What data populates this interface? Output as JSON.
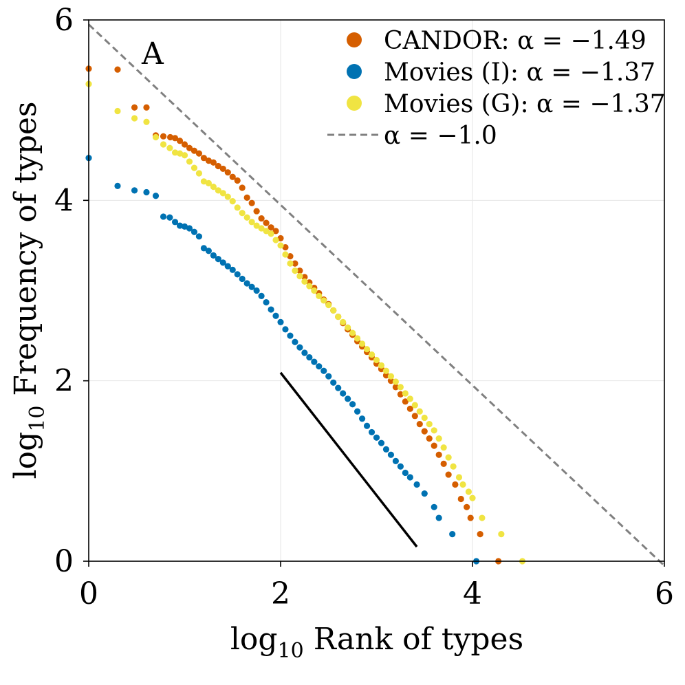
{
  "chart_data": {
    "type": "scatter",
    "panel_label": "A",
    "xlabel_prefix": "log",
    "xlabel_sub": "10",
    "xlabel_rest": " Rank of types",
    "ylabel_prefix": "log",
    "ylabel_sub": "10",
    "ylabel_rest": " Frequency of types",
    "xlim": [
      0,
      6
    ],
    "ylim": [
      0,
      6
    ],
    "xticks": [
      0,
      2,
      4,
      6
    ],
    "yticks": [
      0,
      2,
      4,
      6
    ],
    "grid": true,
    "legend_position": "top-right",
    "series": [
      {
        "name": "CANDOR",
        "label": "CANDOR: α = −1.49",
        "alpha": -1.49,
        "color": "#d55e00",
        "points": [
          [
            0,
            5.46
          ],
          [
            0.301,
            5.45
          ],
          [
            0.477,
            5.03
          ],
          [
            0.602,
            5.03
          ],
          [
            0.699,
            4.72
          ],
          [
            0.778,
            4.71
          ],
          [
            0.85,
            4.7
          ],
          [
            0.9,
            4.69
          ],
          [
            0.95,
            4.66
          ],
          [
            1.0,
            4.62
          ],
          [
            1.05,
            4.58
          ],
          [
            1.1,
            4.55
          ],
          [
            1.15,
            4.52
          ],
          [
            1.2,
            4.47
          ],
          [
            1.25,
            4.44
          ],
          [
            1.3,
            4.42
          ],
          [
            1.35,
            4.38
          ],
          [
            1.4,
            4.35
          ],
          [
            1.45,
            4.31
          ],
          [
            1.5,
            4.26
          ],
          [
            1.55,
            4.22
          ],
          [
            1.6,
            4.14
          ],
          [
            1.65,
            4.03
          ],
          [
            1.7,
            3.97
          ],
          [
            1.75,
            3.88
          ],
          [
            1.8,
            3.8
          ],
          [
            1.85,
            3.75
          ],
          [
            1.9,
            3.7
          ],
          [
            1.95,
            3.66
          ],
          [
            2.0,
            3.58
          ],
          [
            2.05,
            3.48
          ],
          [
            2.1,
            3.38
          ],
          [
            2.15,
            3.3
          ],
          [
            2.2,
            3.22
          ],
          [
            2.25,
            3.15
          ],
          [
            2.3,
            3.09
          ],
          [
            2.35,
            3.03
          ],
          [
            2.4,
            2.97
          ],
          [
            2.45,
            2.9
          ],
          [
            2.5,
            2.85
          ],
          [
            2.55,
            2.78
          ],
          [
            2.6,
            2.71
          ],
          [
            2.65,
            2.64
          ],
          [
            2.7,
            2.57
          ],
          [
            2.75,
            2.51
          ],
          [
            2.8,
            2.44
          ],
          [
            2.85,
            2.38
          ],
          [
            2.9,
            2.32
          ],
          [
            2.95,
            2.26
          ],
          [
            3.0,
            2.19
          ],
          [
            3.05,
            2.13
          ],
          [
            3.1,
            2.06
          ],
          [
            3.15,
            2.0
          ],
          [
            3.2,
            1.93
          ],
          [
            3.25,
            1.85
          ],
          [
            3.3,
            1.77
          ],
          [
            3.35,
            1.69
          ],
          [
            3.4,
            1.61
          ],
          [
            3.45,
            1.52
          ],
          [
            3.5,
            1.44
          ],
          [
            3.55,
            1.36
          ],
          [
            3.6,
            1.28
          ],
          [
            3.65,
            1.18
          ],
          [
            3.7,
            1.08
          ],
          [
            3.75,
            0.96
          ],
          [
            3.82,
            0.85
          ],
          [
            3.88,
            0.69
          ],
          [
            3.94,
            0.6
          ],
          [
            3.98,
            0.48
          ],
          [
            4.08,
            0.3
          ],
          [
            4.27,
            0.0
          ]
        ]
      },
      {
        "name": "Movies (I)",
        "label": "Movies (I): α = −1.37",
        "alpha": -1.37,
        "color": "#0072b2",
        "points": [
          [
            0,
            4.47
          ],
          [
            0.301,
            4.16
          ],
          [
            0.477,
            4.11
          ],
          [
            0.602,
            4.09
          ],
          [
            0.699,
            4.05
          ],
          [
            0.778,
            3.82
          ],
          [
            0.845,
            3.81
          ],
          [
            0.9,
            3.76
          ],
          [
            0.95,
            3.72
          ],
          [
            1.0,
            3.71
          ],
          [
            1.05,
            3.69
          ],
          [
            1.1,
            3.65
          ],
          [
            1.15,
            3.6
          ],
          [
            1.2,
            3.47
          ],
          [
            1.25,
            3.44
          ],
          [
            1.3,
            3.39
          ],
          [
            1.35,
            3.35
          ],
          [
            1.4,
            3.31
          ],
          [
            1.45,
            3.27
          ],
          [
            1.5,
            3.23
          ],
          [
            1.55,
            3.18
          ],
          [
            1.6,
            3.13
          ],
          [
            1.65,
            3.08
          ],
          [
            1.7,
            3.04
          ],
          [
            1.75,
            3.0
          ],
          [
            1.8,
            2.94
          ],
          [
            1.85,
            2.87
          ],
          [
            1.9,
            2.79
          ],
          [
            1.95,
            2.72
          ],
          [
            2.0,
            2.65
          ],
          [
            2.05,
            2.57
          ],
          [
            2.1,
            2.5
          ],
          [
            2.15,
            2.43
          ],
          [
            2.2,
            2.37
          ],
          [
            2.25,
            2.31
          ],
          [
            2.3,
            2.26
          ],
          [
            2.35,
            2.21
          ],
          [
            2.4,
            2.16
          ],
          [
            2.45,
            2.11
          ],
          [
            2.5,
            2.05
          ],
          [
            2.55,
            1.98
          ],
          [
            2.6,
            1.92
          ],
          [
            2.65,
            1.86
          ],
          [
            2.7,
            1.8
          ],
          [
            2.75,
            1.74
          ],
          [
            2.8,
            1.66
          ],
          [
            2.85,
            1.58
          ],
          [
            2.9,
            1.5
          ],
          [
            2.95,
            1.43
          ],
          [
            3.0,
            1.37
          ],
          [
            3.05,
            1.31
          ],
          [
            3.1,
            1.24
          ],
          [
            3.15,
            1.18
          ],
          [
            3.2,
            1.11
          ],
          [
            3.25,
            1.05
          ],
          [
            3.3,
            0.98
          ],
          [
            3.35,
            0.93
          ],
          [
            3.42,
            0.85
          ],
          [
            3.5,
            0.75
          ],
          [
            3.6,
            0.6
          ],
          [
            3.65,
            0.48
          ],
          [
            3.79,
            0.3
          ],
          [
            4.04,
            0.0
          ]
        ]
      },
      {
        "name": "Movies (G)",
        "label": "Movies (G): α = −1.37",
        "alpha": -1.37,
        "color": "#f0e442",
        "points": [
          [
            0,
            5.29
          ],
          [
            0.301,
            4.99
          ],
          [
            0.477,
            4.91
          ],
          [
            0.602,
            4.87
          ],
          [
            0.699,
            4.7
          ],
          [
            0.778,
            4.62
          ],
          [
            0.845,
            4.58
          ],
          [
            0.9,
            4.53
          ],
          [
            0.95,
            4.52
          ],
          [
            1.0,
            4.5
          ],
          [
            1.05,
            4.43
          ],
          [
            1.1,
            4.36
          ],
          [
            1.15,
            4.3
          ],
          [
            1.2,
            4.21
          ],
          [
            1.25,
            4.19
          ],
          [
            1.3,
            4.15
          ],
          [
            1.35,
            4.11
          ],
          [
            1.4,
            4.08
          ],
          [
            1.45,
            4.04
          ],
          [
            1.5,
            3.99
          ],
          [
            1.55,
            3.92
          ],
          [
            1.6,
            3.86
          ],
          [
            1.65,
            3.81
          ],
          [
            1.7,
            3.76
          ],
          [
            1.75,
            3.72
          ],
          [
            1.8,
            3.69
          ],
          [
            1.85,
            3.66
          ],
          [
            1.9,
            3.63
          ],
          [
            1.95,
            3.56
          ],
          [
            2.0,
            3.5
          ],
          [
            2.05,
            3.4
          ],
          [
            2.1,
            3.3
          ],
          [
            2.15,
            3.22
          ],
          [
            2.2,
            3.16
          ],
          [
            2.25,
            3.1
          ],
          [
            2.3,
            3.05
          ],
          [
            2.35,
            3.0
          ],
          [
            2.4,
            2.94
          ],
          [
            2.45,
            2.89
          ],
          [
            2.5,
            2.84
          ],
          [
            2.55,
            2.78
          ],
          [
            2.6,
            2.71
          ],
          [
            2.65,
            2.65
          ],
          [
            2.7,
            2.59
          ],
          [
            2.75,
            2.53
          ],
          [
            2.8,
            2.47
          ],
          [
            2.85,
            2.41
          ],
          [
            2.9,
            2.35
          ],
          [
            2.95,
            2.29
          ],
          [
            3.0,
            2.23
          ],
          [
            3.05,
            2.17
          ],
          [
            3.1,
            2.11
          ],
          [
            3.15,
            2.05
          ],
          [
            3.2,
            1.99
          ],
          [
            3.25,
            1.93
          ],
          [
            3.3,
            1.86
          ],
          [
            3.35,
            1.8
          ],
          [
            3.4,
            1.73
          ],
          [
            3.45,
            1.66
          ],
          [
            3.5,
            1.59
          ],
          [
            3.55,
            1.52
          ],
          [
            3.6,
            1.45
          ],
          [
            3.65,
            1.36
          ],
          [
            3.7,
            1.26
          ],
          [
            3.75,
            1.15
          ],
          [
            3.8,
            1.05
          ],
          [
            3.86,
            0.93
          ],
          [
            3.9,
            0.85
          ],
          [
            3.96,
            0.77
          ],
          [
            4.0,
            0.7
          ],
          [
            4.1,
            0.48
          ],
          [
            4.3,
            0.3
          ],
          [
            4.52,
            0.0
          ]
        ]
      }
    ],
    "reference_line": {
      "label": "α = −1.0",
      "alpha": -1.0,
      "color": "#808080",
      "x": [
        0,
        6
      ],
      "y": [
        5.95,
        -0.05
      ]
    },
    "slope_segment": {
      "color": "#000000",
      "x": [
        2.0,
        3.42
      ],
      "y": [
        2.09,
        0.16
      ]
    }
  }
}
